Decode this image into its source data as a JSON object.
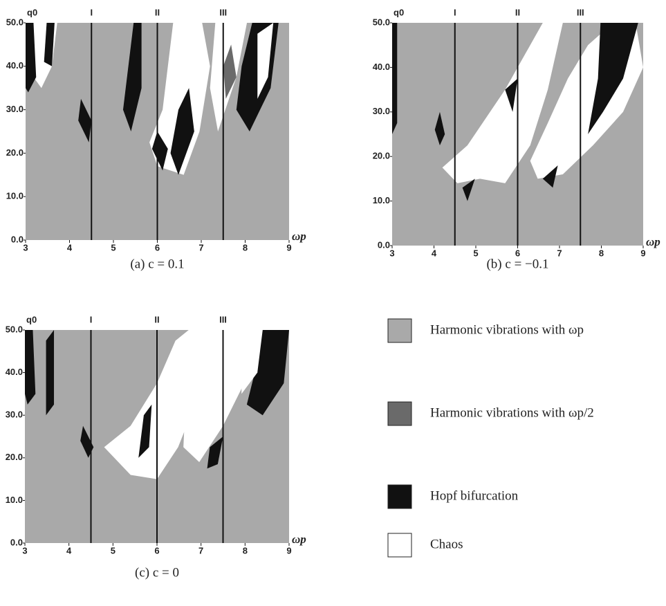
{
  "panels": [
    {
      "caption": "(a)  c = 0.1",
      "y_axis_label": "q0",
      "x_axis_label": "ωp",
      "xlim": [
        3,
        9
      ],
      "ylim": [
        0,
        50
      ],
      "xticks": [
        3,
        4,
        5,
        6,
        7,
        8,
        9
      ],
      "yticks": [
        {
          "value": 0,
          "label": "0.0"
        },
        {
          "value": 10,
          "label": "10.0"
        },
        {
          "value": 20,
          "label": "20.0"
        },
        {
          "value": 30,
          "label": "30.0"
        },
        {
          "value": 40,
          "label": "40.0"
        },
        {
          "value": 50,
          "label": "50.0"
        }
      ],
      "region_lines": [
        {
          "value": 4.5,
          "label": "I"
        },
        {
          "value": 6,
          "label": "II"
        },
        {
          "value": 7.5,
          "label": "III"
        }
      ]
    },
    {
      "caption": "(b)  c = −0.1",
      "y_axis_label": "q0",
      "x_axis_label": "ωp",
      "xlim": [
        3,
        9
      ],
      "ylim": [
        0,
        50
      ],
      "xticks": [
        3,
        4,
        5,
        6,
        7,
        8,
        9
      ],
      "yticks": [
        {
          "value": 0,
          "label": "0.0"
        },
        {
          "value": 10,
          "label": "10.0"
        },
        {
          "value": 20,
          "label": "20.0"
        },
        {
          "value": 30,
          "label": "30.0"
        },
        {
          "value": 40,
          "label": "40.0"
        },
        {
          "value": 50,
          "label": "50.0"
        }
      ],
      "region_lines": [
        {
          "value": 4.5,
          "label": "I"
        },
        {
          "value": 6,
          "label": "II"
        },
        {
          "value": 7.5,
          "label": "III"
        }
      ]
    },
    {
      "caption": "(c)  c = 0",
      "y_axis_label": "q0",
      "x_axis_label": "ωp",
      "xlim": [
        3,
        9
      ],
      "ylim": [
        0,
        50
      ],
      "xticks": [
        3,
        4,
        5,
        6,
        7,
        8,
        9
      ],
      "yticks": [
        {
          "value": 0,
          "label": "0.0"
        },
        {
          "value": 10,
          "label": "10.0"
        },
        {
          "value": 20,
          "label": "20.0"
        },
        {
          "value": 30,
          "label": "30.0"
        },
        {
          "value": 40,
          "label": "40.0"
        },
        {
          "value": 50,
          "label": "50.0"
        }
      ],
      "region_lines": [
        {
          "value": 4.5,
          "label": "I"
        },
        {
          "value": 6,
          "label": "II"
        },
        {
          "value": 7.5,
          "label": "III"
        }
      ]
    }
  ],
  "legend": [
    {
      "label": "Harmonic vibrations with ωp",
      "color": "#a9a9a9"
    },
    {
      "label": "Harmonic vibrations with ωp/2",
      "color": "#6a6a6a"
    },
    {
      "label": "Hopf bifurcation",
      "color": "#111111"
    },
    {
      "label": "Chaos",
      "color": "#ffffff"
    }
  ]
}
